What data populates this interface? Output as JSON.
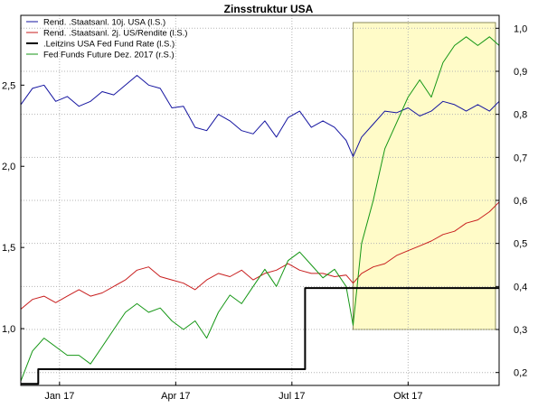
{
  "chart_data": {
    "type": "line",
    "title": "Zinsstruktur USA",
    "x_ticks": [
      {
        "label": "Jan 17",
        "x": 1.0
      },
      {
        "label": "Apr 17",
        "x": 4.0
      },
      {
        "label": "Jul 17",
        "x": 7.0
      },
      {
        "label": "Okt 17",
        "x": 10.0
      }
    ],
    "y_left": {
      "ticks": [
        "1,0",
        "1,5",
        "2,0",
        "2,5"
      ],
      "values": [
        1.0,
        1.5,
        2.0,
        2.5
      ],
      "range": [
        0.65,
        2.93
      ]
    },
    "y_right": {
      "ticks": [
        "0,2",
        "0,3",
        "0,4",
        "0,5",
        "0,6",
        "0,7",
        "0,8",
        "0,9",
        "1,0"
      ],
      "values": [
        0.2,
        0.3,
        0.4,
        0.5,
        0.6,
        0.7,
        0.8,
        0.9,
        1.0
      ],
      "range": [
        0.17,
        1.03
      ]
    },
    "x_range": [
      0.0,
      12.35
    ],
    "highlight_range": [
      8.58,
      12.35
    ],
    "highlight_color": "#fffbc8",
    "legend_position": "top-left",
    "series": [
      {
        "name": "Rend. .Staatsanl. 10j. USA (l.S.)",
        "color": "#1414a0",
        "axis": "left",
        "x": [
          0.0,
          0.3,
          0.6,
          0.9,
          1.2,
          1.5,
          1.8,
          2.1,
          2.4,
          2.7,
          3.0,
          3.3,
          3.6,
          3.9,
          4.2,
          4.5,
          4.8,
          5.1,
          5.4,
          5.7,
          6.0,
          6.3,
          6.6,
          6.9,
          7.2,
          7.5,
          7.8,
          8.1,
          8.4,
          8.58,
          8.8,
          9.1,
          9.4,
          9.7,
          10.0,
          10.3,
          10.6,
          10.9,
          11.2,
          11.5,
          11.8,
          12.1,
          12.35
        ],
        "values": [
          2.38,
          2.48,
          2.5,
          2.4,
          2.43,
          2.37,
          2.4,
          2.46,
          2.44,
          2.5,
          2.56,
          2.5,
          2.48,
          2.36,
          2.37,
          2.24,
          2.22,
          2.32,
          2.28,
          2.22,
          2.2,
          2.28,
          2.18,
          2.3,
          2.34,
          2.24,
          2.28,
          2.24,
          2.16,
          2.06,
          2.18,
          2.26,
          2.34,
          2.33,
          2.36,
          2.31,
          2.34,
          2.4,
          2.38,
          2.34,
          2.38,
          2.34,
          2.4
        ]
      },
      {
        "name": "Rend. .Staatsanl. 2j. US/Rendite (l.S.)",
        "color": "#c81e1e",
        "axis": "left",
        "x": [
          0.0,
          0.3,
          0.6,
          0.9,
          1.2,
          1.5,
          1.8,
          2.1,
          2.4,
          2.7,
          3.0,
          3.3,
          3.6,
          3.9,
          4.2,
          4.5,
          4.8,
          5.1,
          5.4,
          5.7,
          6.0,
          6.3,
          6.6,
          6.9,
          7.2,
          7.5,
          7.8,
          8.1,
          8.4,
          8.58,
          8.8,
          9.1,
          9.4,
          9.7,
          10.0,
          10.3,
          10.6,
          10.9,
          11.2,
          11.5,
          11.8,
          12.1,
          12.35
        ],
        "values": [
          1.12,
          1.18,
          1.2,
          1.16,
          1.2,
          1.24,
          1.2,
          1.22,
          1.26,
          1.3,
          1.36,
          1.38,
          1.32,
          1.3,
          1.28,
          1.24,
          1.3,
          1.34,
          1.32,
          1.36,
          1.3,
          1.34,
          1.36,
          1.4,
          1.36,
          1.34,
          1.34,
          1.32,
          1.33,
          1.28,
          1.34,
          1.38,
          1.4,
          1.45,
          1.48,
          1.51,
          1.54,
          1.58,
          1.6,
          1.65,
          1.67,
          1.72,
          1.78
        ]
      },
      {
        "name": ".Leitzins USA Fed Fund Rate (l.S.)",
        "color": "#000000",
        "axis": "left",
        "x": [
          0.0,
          0.45,
          0.45,
          0.75,
          0.75,
          4.03,
          4.03,
          7.34,
          7.34,
          12.35
        ],
        "values": [
          0.66,
          0.66,
          0.75,
          0.75,
          0.75,
          0.75,
          0.75,
          0.75,
          1.25,
          1.25
        ]
      },
      {
        "name": "Fed Funds Future Dez. 2017 (r.S.)",
        "color": "#149614",
        "axis": "right",
        "x": [
          0.0,
          0.3,
          0.6,
          0.9,
          1.2,
          1.5,
          1.8,
          2.1,
          2.4,
          2.7,
          3.0,
          3.3,
          3.6,
          3.9,
          4.2,
          4.5,
          4.8,
          5.1,
          5.4,
          5.7,
          6.0,
          6.3,
          6.6,
          6.9,
          7.2,
          7.5,
          7.8,
          8.1,
          8.4,
          8.58,
          8.8,
          9.1,
          9.4,
          9.7,
          10.0,
          10.3,
          10.6,
          10.9,
          11.2,
          11.5,
          11.8,
          12.1,
          12.35
        ],
        "values": [
          0.18,
          0.25,
          0.28,
          0.26,
          0.24,
          0.24,
          0.22,
          0.26,
          0.3,
          0.34,
          0.36,
          0.34,
          0.35,
          0.32,
          0.3,
          0.32,
          0.28,
          0.34,
          0.38,
          0.36,
          0.4,
          0.44,
          0.4,
          0.46,
          0.48,
          0.45,
          0.42,
          0.44,
          0.4,
          0.31,
          0.5,
          0.6,
          0.72,
          0.78,
          0.84,
          0.88,
          0.84,
          0.92,
          0.96,
          0.98,
          0.96,
          0.98,
          0.96
        ]
      }
    ]
  }
}
